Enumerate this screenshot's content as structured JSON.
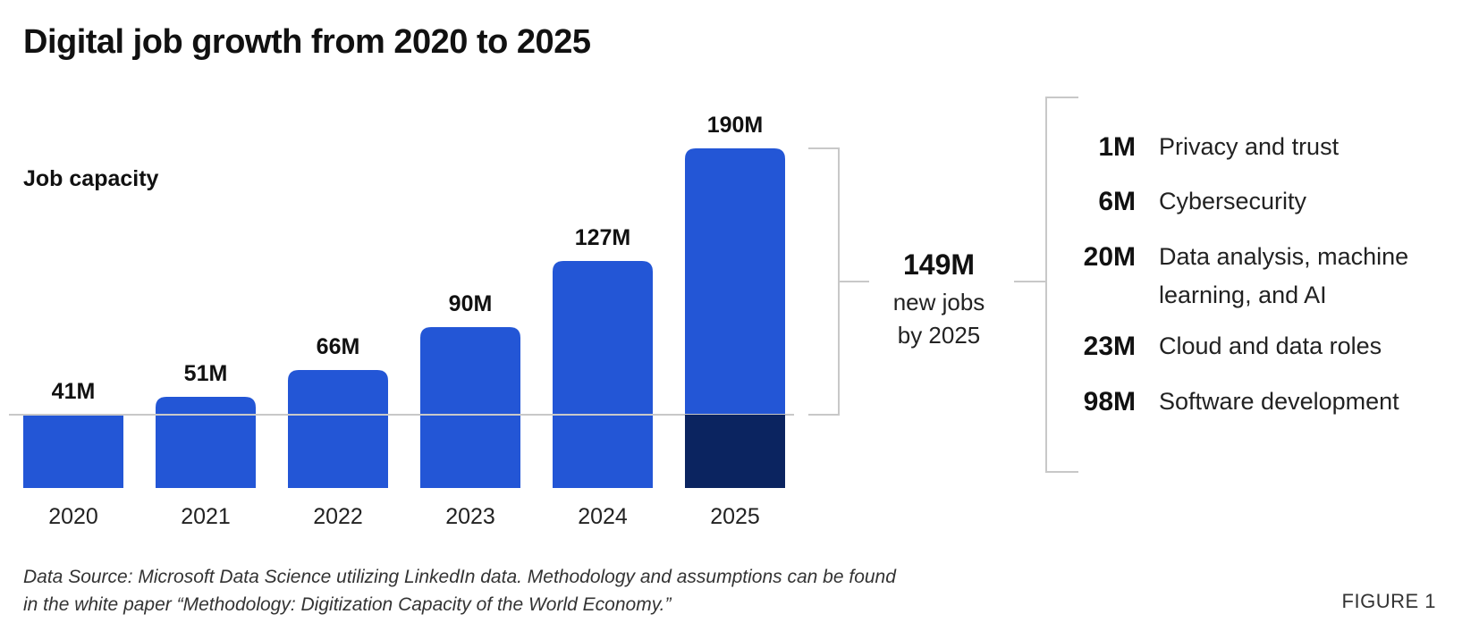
{
  "title": "Digital job growth from 2020 to 2025",
  "colors": {
    "bar": "#2356d6",
    "highlight": "#0b2460",
    "baseline": "#c8c8c8",
    "bracket": "#c8c8c8"
  },
  "chart_data": {
    "type": "bar",
    "title": "Digital job growth from 2020 to 2025",
    "subtitle": "Job capacity",
    "xlabel": "",
    "ylabel": "",
    "grid": false,
    "categories": [
      "2020",
      "2021",
      "2022",
      "2023",
      "2024",
      "2025"
    ],
    "values": [
      41,
      51,
      66,
      90,
      127,
      190
    ],
    "value_labels": [
      "41M",
      "51M",
      "66M",
      "90M",
      "127M",
      "190M"
    ],
    "unit": "M",
    "highlight_segment": {
      "category": "2025",
      "value": 41
    },
    "annotation": {
      "total_value": "149M",
      "total_caption_lines": [
        "new jobs",
        "by 2025"
      ],
      "breakdown": [
        {
          "value": "1M",
          "label": "Privacy and trust"
        },
        {
          "value": "6M",
          "label": "Cybersecurity"
        },
        {
          "value": "20M",
          "label": "Data analysis, machine learning, and AI"
        },
        {
          "value": "23M",
          "label": "Cloud and data roles"
        },
        {
          "value": "98M",
          "label": "Software development"
        }
      ]
    }
  },
  "footnote": "Data Source: Microsoft Data Science utilizing LinkedIn data. Methodology and assumptions can be found in the white paper “Methodology: Digitization Capacity of the World Economy.”",
  "figure_label": "FIGURE 1"
}
